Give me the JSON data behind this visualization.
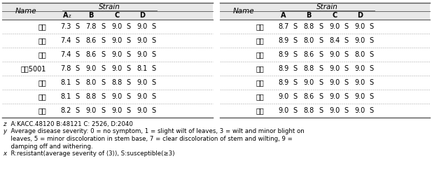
{
  "left_names": [
    "만균",
    "밀성",
    "유백",
    "중모5001",
    "만리",
    "호건",
    "오산"
  ],
  "left_A": [
    "7.3",
    "7.4",
    "7.4",
    "7.8",
    "8.1",
    "8.1",
    "8.2"
  ],
  "left_Ars": [
    "S",
    "S",
    "S",
    "S",
    "S",
    "S",
    "S"
  ],
  "left_B": [
    "7.8",
    "8.6",
    "8.6",
    "9.0",
    "8.0",
    "8.8",
    "9.0"
  ],
  "left_Brs": [
    "S",
    "S",
    "S",
    "S",
    "S",
    "S",
    "S"
  ],
  "left_C": [
    "9.0",
    "9.0",
    "9.0",
    "9.0",
    "8.8",
    "9.0",
    "9.0"
  ],
  "left_Crs": [
    "S",
    "S",
    "S",
    "S",
    "S",
    "S",
    "S"
  ],
  "left_D": [
    "9.0",
    "9.0",
    "9.0",
    "8.1",
    "9.0",
    "9.0",
    "9.0"
  ],
  "left_Drs": [
    "S",
    "S",
    "S",
    "S",
    "S",
    "S",
    "S"
  ],
  "right_names": [
    "풍남",
    "선백",
    "고품",
    "황백",
    "윤후",
    "갈미",
    "다흑"
  ],
  "right_A": [
    "8.7",
    "8.9",
    "8.9",
    "8.9",
    "8.9",
    "9.0",
    "9.0"
  ],
  "right_Ars": [
    "S",
    "S",
    "S",
    "S",
    "S",
    "S",
    "S"
  ],
  "right_B": [
    "8.8",
    "8.0",
    "8.6",
    "8.8",
    "9.0",
    "8.6",
    "8.8"
  ],
  "right_Brs": [
    "S",
    "S",
    "S",
    "S",
    "S",
    "S",
    "S"
  ],
  "right_C": [
    "9.0",
    "8.4",
    "9.0",
    "9.0",
    "9.0",
    "9.0",
    "9.0"
  ],
  "right_Crs": [
    "S",
    "S",
    "S",
    "S",
    "S",
    "S",
    "S"
  ],
  "right_D": [
    "9.0",
    "9.0",
    "8.0",
    "9.0",
    "9.0",
    "9.0",
    "9.0"
  ],
  "right_Drs": [
    "S",
    "S",
    "S",
    "S",
    "S",
    "S",
    "S"
  ],
  "footnote1": "z A:KACC.48120 B:48121 C: 2526, D:2040",
  "footnote2a": "y Average disease severity: 0 = no symptom, 1 = slight wilt of leaves, 3 = wilt and minor blight on",
  "footnote2b": "  leaves, 5 = minor discoloration in stem base, 7 = clear discoloration of stem and wilting, 9 =",
  "footnote2c": "  damping off and withering.",
  "footnote3": "x R:resistant(average severity of ⟨3⟩), S:susceptible(≥3)",
  "header_bg": "#e8e8e8",
  "bg_color": "#ffffff",
  "border_color": "#555555",
  "text_color": "#000000",
  "fs_data": 7.0,
  "fs_header": 7.5,
  "fs_footnote": 6.2
}
